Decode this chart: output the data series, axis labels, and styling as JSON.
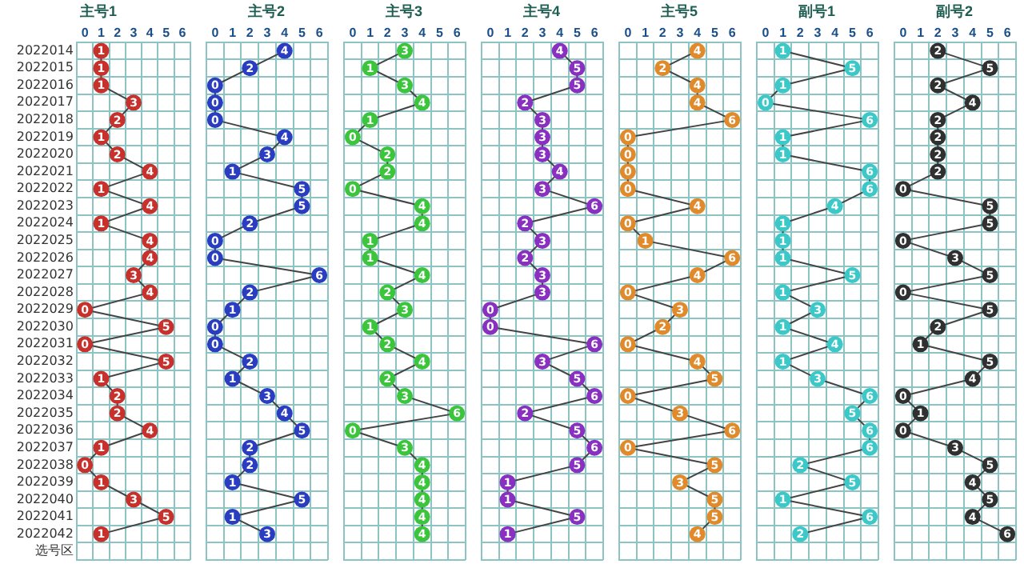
{
  "chart_data": [
    {
      "type": "line",
      "title": "主号1",
      "orientation": "horizontal",
      "categories": [
        "2022014",
        "2022015",
        "2022016",
        "2022017",
        "2022018",
        "2022019",
        "2022020",
        "2022021",
        "2022022",
        "2022023",
        "2022024",
        "2022025",
        "2022026",
        "2022027",
        "2022028",
        "2022029",
        "2022030",
        "2022031",
        "2022032",
        "2022033",
        "2022034",
        "2022035",
        "2022036",
        "2022037",
        "2022038",
        "2022039",
        "2022040",
        "2022041",
        "2022042",
        "选号区"
      ],
      "values": [
        1,
        1,
        1,
        3,
        2,
        1,
        2,
        4,
        1,
        4,
        1,
        4,
        4,
        3,
        4,
        0,
        5,
        0,
        5,
        1,
        2,
        2,
        4,
        1,
        0,
        1,
        3,
        5,
        1,
        null
      ],
      "color": "#c8302c",
      "xlim": [
        -0.5,
        6.5
      ],
      "xticks": [
        0,
        1,
        2,
        3,
        4,
        5,
        6
      ],
      "grid": true,
      "legend": false,
      "marker": "circle",
      "data_labels": true
    },
    {
      "type": "line",
      "title": "主号2",
      "orientation": "horizontal",
      "tick_labels": "x",
      "values": [
        4,
        2,
        0,
        0,
        0,
        4,
        3,
        1,
        5,
        5,
        2,
        0,
        0,
        6,
        2,
        1,
        0,
        0,
        2,
        1,
        3,
        4,
        5,
        2,
        2,
        1,
        5,
        1,
        3,
        null
      ],
      "color": "#2a3cc0",
      "xlim": [
        -0.5,
        6.5
      ],
      "xticks": [
        0,
        1,
        2,
        3,
        4,
        5,
        6
      ],
      "grid": true,
      "legend": false,
      "marker": "circle",
      "data_labels": true
    },
    {
      "type": "line",
      "title": "主号3",
      "orientation": "horizontal",
      "tick_labels": "x",
      "values": [
        3,
        1,
        3,
        4,
        1,
        0,
        2,
        2,
        0,
        4,
        4,
        1,
        1,
        4,
        2,
        3,
        1,
        2,
        4,
        2,
        3,
        6,
        0,
        3,
        4,
        4,
        4,
        4,
        4,
        null
      ],
      "color": "#3cc43c",
      "xlim": [
        -0.5,
        6.5
      ],
      "xticks": [
        0,
        1,
        2,
        3,
        4,
        5,
        6
      ],
      "grid": true,
      "legend": false,
      "marker": "circle",
      "data_labels": true
    },
    {
      "type": "line",
      "title": "主号4",
      "orientation": "horizontal",
      "tick_labels": "x",
      "values": [
        4,
        5,
        5,
        2,
        3,
        3,
        3,
        4,
        3,
        6,
        2,
        3,
        2,
        3,
        3,
        0,
        0,
        6,
        3,
        5,
        6,
        2,
        5,
        6,
        5,
        1,
        1,
        5,
        1,
        null
      ],
      "color": "#8a30c0",
      "xlim": [
        -0.5,
        6.5
      ],
      "xticks": [
        0,
        1,
        2,
        3,
        4,
        5,
        6
      ],
      "grid": true,
      "legend": false,
      "marker": "circle",
      "data_labels": true
    },
    {
      "type": "line",
      "title": "主号5",
      "orientation": "horizontal",
      "tick_labels": "x",
      "values": [
        4,
        2,
        4,
        4,
        6,
        0,
        0,
        0,
        0,
        4,
        0,
        1,
        6,
        4,
        0,
        3,
        2,
        0,
        4,
        5,
        0,
        3,
        6,
        0,
        5,
        3,
        5,
        5,
        4,
        null
      ],
      "color": "#e08a2c",
      "xlim": [
        -0.5,
        6.5
      ],
      "xticks": [
        0,
        1,
        2,
        3,
        4,
        5,
        6
      ],
      "grid": true,
      "legend": false,
      "marker": "circle",
      "data_labels": true
    },
    {
      "type": "line",
      "title": "副号1",
      "orientation": "horizontal",
      "tick_labels": "x",
      "values": [
        1,
        5,
        1,
        0,
        6,
        1,
        1,
        6,
        6,
        4,
        1,
        1,
        1,
        5,
        1,
        3,
        1,
        4,
        1,
        3,
        6,
        5,
        6,
        6,
        2,
        5,
        1,
        6,
        2,
        null
      ],
      "color": "#3cc8c8",
      "xlim": [
        -0.5,
        6.5
      ],
      "xticks": [
        0,
        1,
        2,
        3,
        4,
        5,
        6
      ],
      "grid": true,
      "legend": false,
      "marker": "circle",
      "data_labels": true
    },
    {
      "type": "line",
      "title": "副号2",
      "orientation": "horizontal",
      "tick_labels": "x",
      "values": [
        2,
        5,
        2,
        4,
        2,
        2,
        2,
        2,
        0,
        5,
        5,
        0,
        3,
        5,
        0,
        5,
        2,
        1,
        5,
        4,
        0,
        1,
        0,
        3,
        5,
        4,
        5,
        4,
        6,
        null
      ],
      "color": "#303030",
      "xlim": [
        -0.5,
        6.5
      ],
      "xticks": [
        0,
        1,
        2,
        3,
        4,
        5,
        6
      ],
      "grid": true,
      "legend": false,
      "marker": "circle",
      "data_labels": true
    }
  ]
}
